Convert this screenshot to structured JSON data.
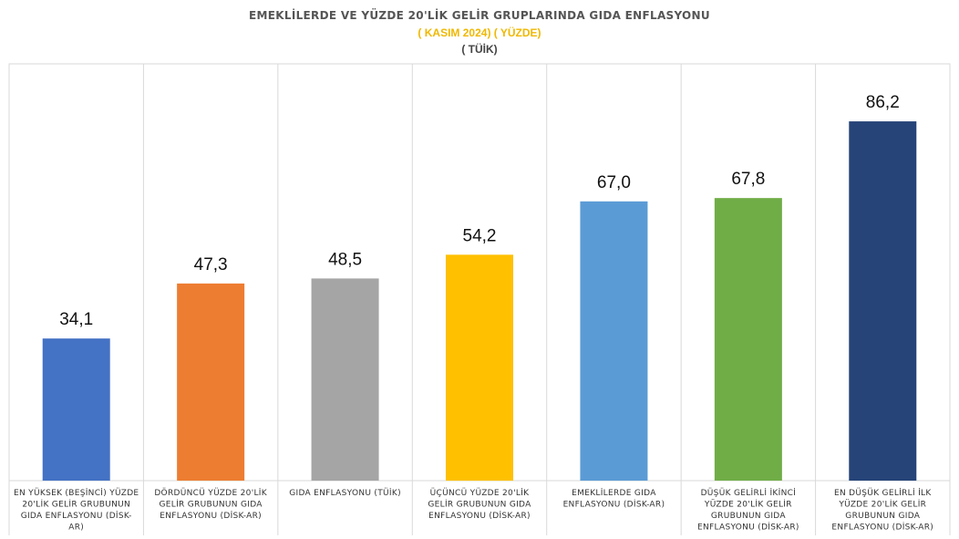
{
  "header": {
    "title": "EMEKLİLERDE VE YÜZDE 20'LİK GELİR GRUPLARINDA GIDA ENFLASYONU",
    "subtitle": "( KASIM 2024)  ( YÜZDE)",
    "source": "( TÜİK)"
  },
  "colors": {
    "subtitle": "#f0b800",
    "gridline": "#d9d9d9"
  },
  "chart_data": {
    "type": "bar",
    "title": "EMEKLİLERDE VE YÜZDE 20'LİK GELİR GRUPLARINDA GIDA ENFLASYONU",
    "subtitle": "( KASIM 2024)  ( YÜZDE)",
    "categories": [
      [
        "EN YÜKSEK (BEŞİNCİ) YÜZDE",
        "20'LİK GELİR GRUBUNUN",
        "GIDA ENFLASYONU (DİSK-",
        "AR)"
      ],
      [
        "DÖRDÜNCÜ YÜZDE 20'LİK",
        "GELİR GRUBUNUN GIDA",
        "ENFLASYONU (DİSK-AR)"
      ],
      [
        "GIDA ENFLASYONU (TÜİK)"
      ],
      [
        "ÜÇÜNCÜ YÜZDE 20'LİK",
        "GELİR GRUBUNUN GIDA",
        "ENFLASYONU (DİSK-AR)"
      ],
      [
        "EMEKLİLERDE GIDA",
        "ENFLASYONU (DİSK-AR)"
      ],
      [
        "DÜŞÜK GELİRLİ İKİNCİ",
        "YÜZDE 20'LİK GELİR",
        "GRUBUNUN GIDA",
        "ENFLASYONU (DİSK-AR)"
      ],
      [
        "EN DÜŞÜK GELİRLİ İLK",
        "YÜZDE 20'LİK GELİR",
        "GRUBUNUN GIDA",
        "ENFLASYONU (DİSK-AR)"
      ]
    ],
    "values": [
      34.1,
      47.3,
      48.5,
      54.2,
      67.0,
      67.8,
      86.2
    ],
    "value_labels": [
      "34,1",
      "47,3",
      "48,5",
      "54,2",
      "67,0",
      "67,8",
      "86,2"
    ],
    "colors": [
      "#4472c4",
      "#ed7d31",
      "#a5a5a5",
      "#ffc000",
      "#5b9bd5",
      "#70ad47",
      "#264478"
    ],
    "ylim": [
      0,
      100
    ],
    "grid": "vertical separators between categories",
    "legend": "none"
  }
}
